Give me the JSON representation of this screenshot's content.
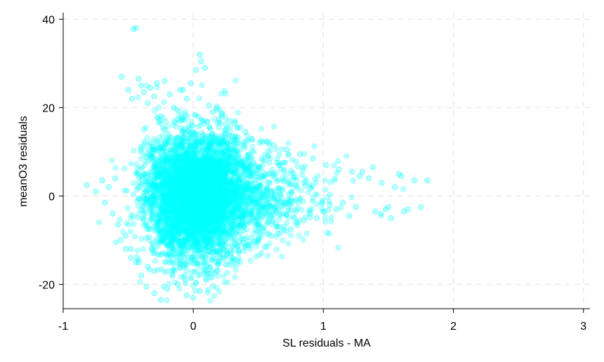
{
  "chart_data": {
    "type": "scatter",
    "xlabel": "SL residuals - MA",
    "ylabel": "meanO3 residuals",
    "xlim": [
      -1.0,
      3.05
    ],
    "ylim": [
      -25.5,
      41.5
    ],
    "xticks": [
      -1,
      0,
      1,
      2,
      3
    ],
    "yticks": [
      -20,
      0,
      20,
      40
    ],
    "grid": true,
    "marker_color": "#00FFFF",
    "marker_opacity": 0.25,
    "core_cloud": {
      "description_values": "dense elliptical cloud of many thousands of points",
      "x_center": 0.0,
      "x_sd": 0.18,
      "y_center": 0.0,
      "y_sd": 7.0
    },
    "series": [
      {
        "x": [
          -0.55,
          -0.46,
          -0.44,
          -0.42,
          -0.4,
          -0.47,
          -0.5,
          -0.38,
          -0.35,
          -0.33,
          -0.3,
          -0.28,
          -0.22,
          -0.18,
          -0.1,
          -0.05,
          0.02,
          0.05,
          0.06,
          0.09,
          0.12,
          -0.25,
          -0.15,
          0.2,
          0.25,
          0.3,
          -0.6,
          -0.65,
          -0.7,
          -0.75,
          -0.82,
          -0.68,
          -0.62,
          -0.58,
          -0.52,
          -0.48,
          -0.44,
          -0.4,
          -0.36,
          -0.3,
          -0.25,
          -0.2,
          -0.12,
          -0.05,
          0.0,
          0.05,
          0.1,
          0.18,
          0.25,
          0.3,
          0.35,
          0.42,
          0.5,
          0.55,
          0.6,
          0.65,
          0.7,
          0.75,
          0.8,
          0.85,
          0.9,
          0.95,
          1.0,
          1.05,
          1.1,
          1.15,
          1.2,
          1.25,
          1.3,
          1.35,
          1.4,
          1.45,
          1.5,
          1.55,
          1.6,
          1.65,
          1.7,
          1.75,
          1.8,
          1.58,
          1.62,
          1.52,
          1.48,
          1.38,
          1.28,
          1.22,
          1.12,
          1.02,
          0.92,
          0.82,
          0.72,
          0.62,
          0.52,
          0.45,
          0.4,
          0.36,
          0.32,
          0.28,
          0.22,
          0.15,
          -0.08,
          -0.02,
          -0.3,
          -0.35,
          -0.42,
          -0.48,
          -0.52,
          -0.56,
          -0.4,
          -0.33,
          -0.22,
          -0.1,
          0.04,
          0.12
        ],
        "y": [
          27.0,
          37.8,
          38.0,
          26.5,
          25.0,
          22.0,
          24.0,
          23.5,
          21.0,
          24.5,
          22.5,
          25.5,
          26.0,
          23.0,
          24.0,
          22.0,
          28.5,
          32.0,
          30.5,
          29.0,
          20.5,
          18.0,
          20.0,
          17.5,
          15.0,
          13.5,
          4.0,
          2.0,
          3.5,
          1.0,
          2.5,
          -1.5,
          -4.0,
          -6.5,
          -9.0,
          -12.0,
          -15.0,
          -18.0,
          -20.5,
          -22.0,
          -23.5,
          -21.0,
          -20.0,
          -22.5,
          -23.0,
          -21.5,
          -19.0,
          -17.0,
          -15.5,
          -14.0,
          -12.5,
          -11.0,
          -10.0,
          -11.5,
          -9.0,
          -8.5,
          -7.0,
          -7.5,
          -6.0,
          -5.5,
          -4.0,
          -5.0,
          -3.5,
          -2.0,
          -3.0,
          -1.5,
          -4.5,
          -2.5,
          5.5,
          4.0,
          -3.5,
          3.0,
          -2.5,
          2.0,
          4.5,
          -3.0,
          3.5,
          -2.5,
          3.5,
          5.0,
          -3.5,
          -5.0,
          -3.0,
          6.5,
          4.5,
          5.5,
          6.0,
          7.0,
          8.5,
          9.5,
          10.5,
          11.5,
          12.5,
          13.0,
          14.5,
          15.5,
          16.5,
          17.0,
          18.5,
          19.0,
          24.0,
          25.5,
          -17.0,
          -16.0,
          -15.0,
          -14.0,
          -12.0,
          -10.0,
          10.0,
          12.0,
          15.0,
          17.0,
          13.0,
          12.5
        ]
      }
    ]
  }
}
